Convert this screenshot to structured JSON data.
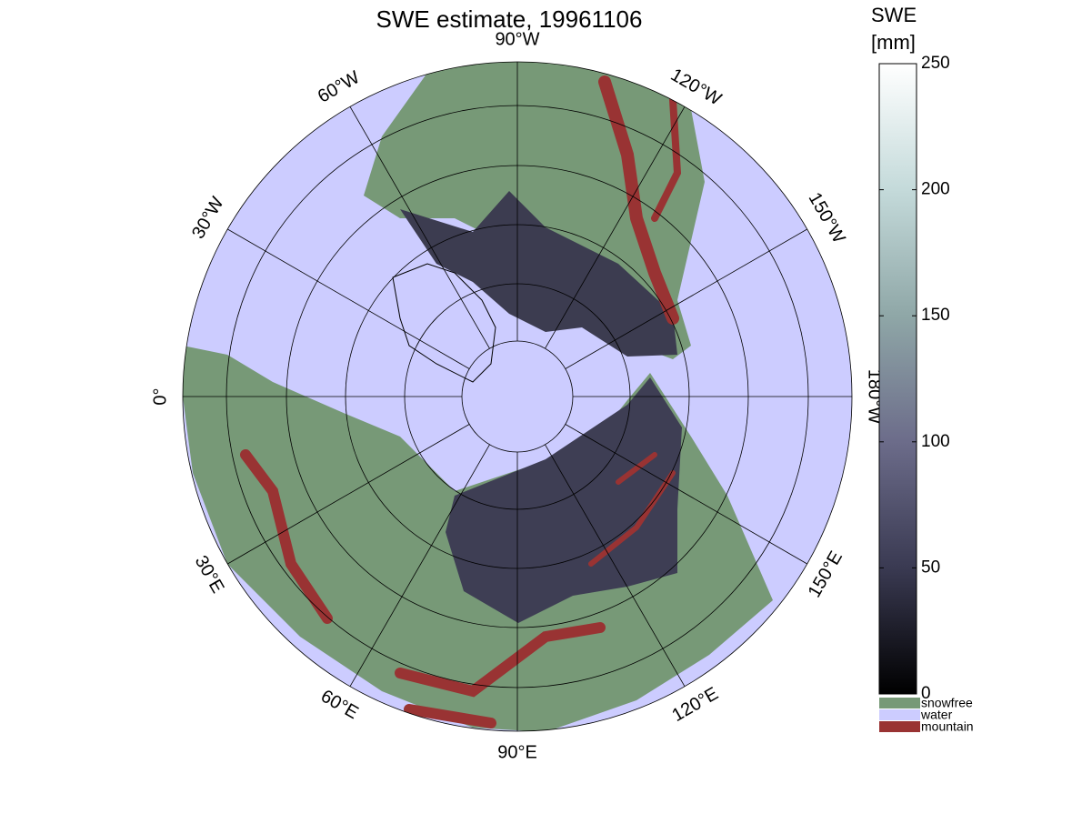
{
  "map": {
    "title": "SWE estimate, 19961106",
    "meridian_labels": [
      "90°W",
      "120°W",
      "150°W",
      "180°W",
      "150°E",
      "120°E",
      "90°E",
      "60°E",
      "30°E",
      "0°",
      "30°W",
      "60°W"
    ],
    "colorbar": {
      "label": [
        "SWE",
        "[mm]"
      ],
      "lim": [
        0,
        250
      ],
      "ticks": [
        0,
        50,
        100,
        150,
        200,
        250
      ],
      "colors": [
        "#000000",
        "#3a3a52",
        "#6c6c8a",
        "#8fa7a7",
        "#c4dada",
        "#ffffff"
      ]
    },
    "legend": [
      {
        "name": "snowfree",
        "color": "#779977"
      },
      {
        "name": "water",
        "color": "#ccccff"
      },
      {
        "name": "mountain",
        "color": "#993333"
      }
    ]
  }
}
